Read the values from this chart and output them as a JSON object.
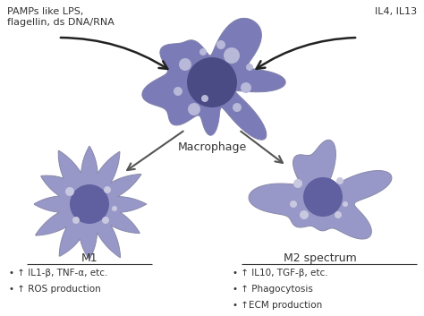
{
  "bg_color": "#ffffff",
  "macrophage_color": "#7b7bb8",
  "macrophage_nucleus_color": "#4a4a85",
  "macrophage_spot_color": "#b8b8d8",
  "m1_color": "#9898c8",
  "m1_nucleus_color": "#6060a0",
  "m2_color": "#9898c8",
  "m2_nucleus_color": "#6060a0",
  "spot_color_light": "#c8c8e0",
  "arrow_color": "#222222",
  "text_color": "#333333",
  "macrophage_label": "Macrophage",
  "m1_label": "M1",
  "m2_label": "M2 spectrum",
  "pamps_label": "PAMPs like LPS,\nflagellin, ds DNA/RNA",
  "il_label": "IL4, IL13",
  "m1_bullets": [
    "• ↑ IL1-β, TNF-α, etc.",
    "• ↑ ROS production"
  ],
  "m2_bullets": [
    "• ↑ IL10, TGF-β, etc.",
    "• ↑ Phagocytosis",
    "• ↑ECM production"
  ],
  "figsize": [
    4.74,
    3.53
  ],
  "dpi": 100
}
